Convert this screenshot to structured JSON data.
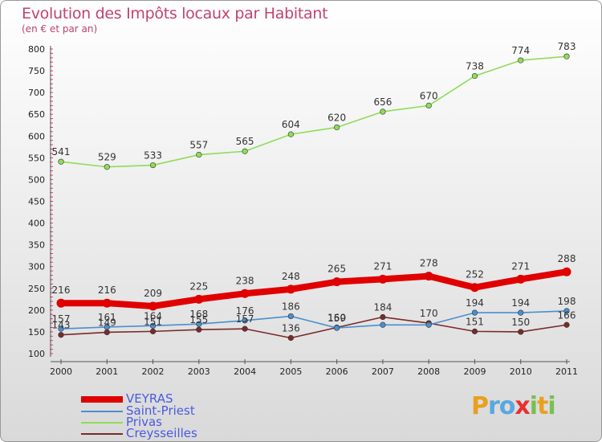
{
  "chart_data": {
    "type": "line",
    "title": "Evolution des Impôts locaux par Habitant",
    "subtitle": "(en € et par an)",
    "x": [
      "2000",
      "2001",
      "2002",
      "2003",
      "2004",
      "2005",
      "2006",
      "2007",
      "2008",
      "2009",
      "2010",
      "2011"
    ],
    "ylim": [
      100,
      800
    ],
    "yticks": [
      100,
      150,
      200,
      250,
      300,
      350,
      400,
      450,
      500,
      550,
      600,
      650,
      700,
      750,
      800
    ],
    "grid": false,
    "legend_position": "bottom-left",
    "series": [
      {
        "name": "VEYRAS",
        "color": "#e00000",
        "values": [
          216,
          216,
          209,
          225,
          238,
          248,
          265,
          271,
          278,
          252,
          271,
          288
        ],
        "labels": [
          "216",
          "216",
          "209",
          "225",
          "238",
          "248",
          "265",
          "271",
          "278",
          "252",
          "271",
          "288"
        ]
      },
      {
        "name": "Saint-Priest",
        "color": "#4a8fd0",
        "values": [
          157,
          161,
          164,
          168,
          176,
          186,
          159,
          166,
          166,
          194,
          194,
          198
        ],
        "labels": [
          "157",
          "161",
          "164",
          "168",
          "176",
          "186",
          "159",
          "",
          "",
          "194",
          "194",
          "198"
        ]
      },
      {
        "name": "Privas",
        "color": "#8fdc5a",
        "values": [
          541,
          529,
          533,
          557,
          565,
          604,
          620,
          656,
          670,
          738,
          774,
          783
        ],
        "labels": [
          "541",
          "529",
          "533",
          "557",
          "565",
          "604",
          "620",
          "656",
          "670",
          "738",
          "774",
          "783"
        ]
      },
      {
        "name": "Creysseilles",
        "color": "#7a2a2a",
        "values": [
          143,
          149,
          151,
          155,
          157,
          136,
          160,
          184,
          170,
          151,
          150,
          166
        ],
        "labels": [
          "143",
          "149",
          "151",
          "155",
          "157",
          "136",
          "160",
          "184",
          "170",
          "151",
          "150",
          "166"
        ]
      }
    ]
  },
  "legend": [
    {
      "name": "VEYRAS",
      "color": "#e00000",
      "thickness": 8
    },
    {
      "name": "Saint-Priest",
      "color": "#4a8fd0",
      "thickness": 2
    },
    {
      "name": "Privas",
      "color": "#8fdc5a",
      "thickness": 2
    },
    {
      "name": "Creysseilles",
      "color": "#7a2a2a",
      "thickness": 2
    }
  ],
  "logo": {
    "letters": [
      "P",
      "r",
      "o",
      "x",
      "i",
      "t",
      "i"
    ],
    "colors": [
      "#e8a020",
      "#58a8e0",
      "#58a8e0",
      "#e83030",
      "#78c050",
      "#e8a020",
      "#78c050"
    ]
  }
}
